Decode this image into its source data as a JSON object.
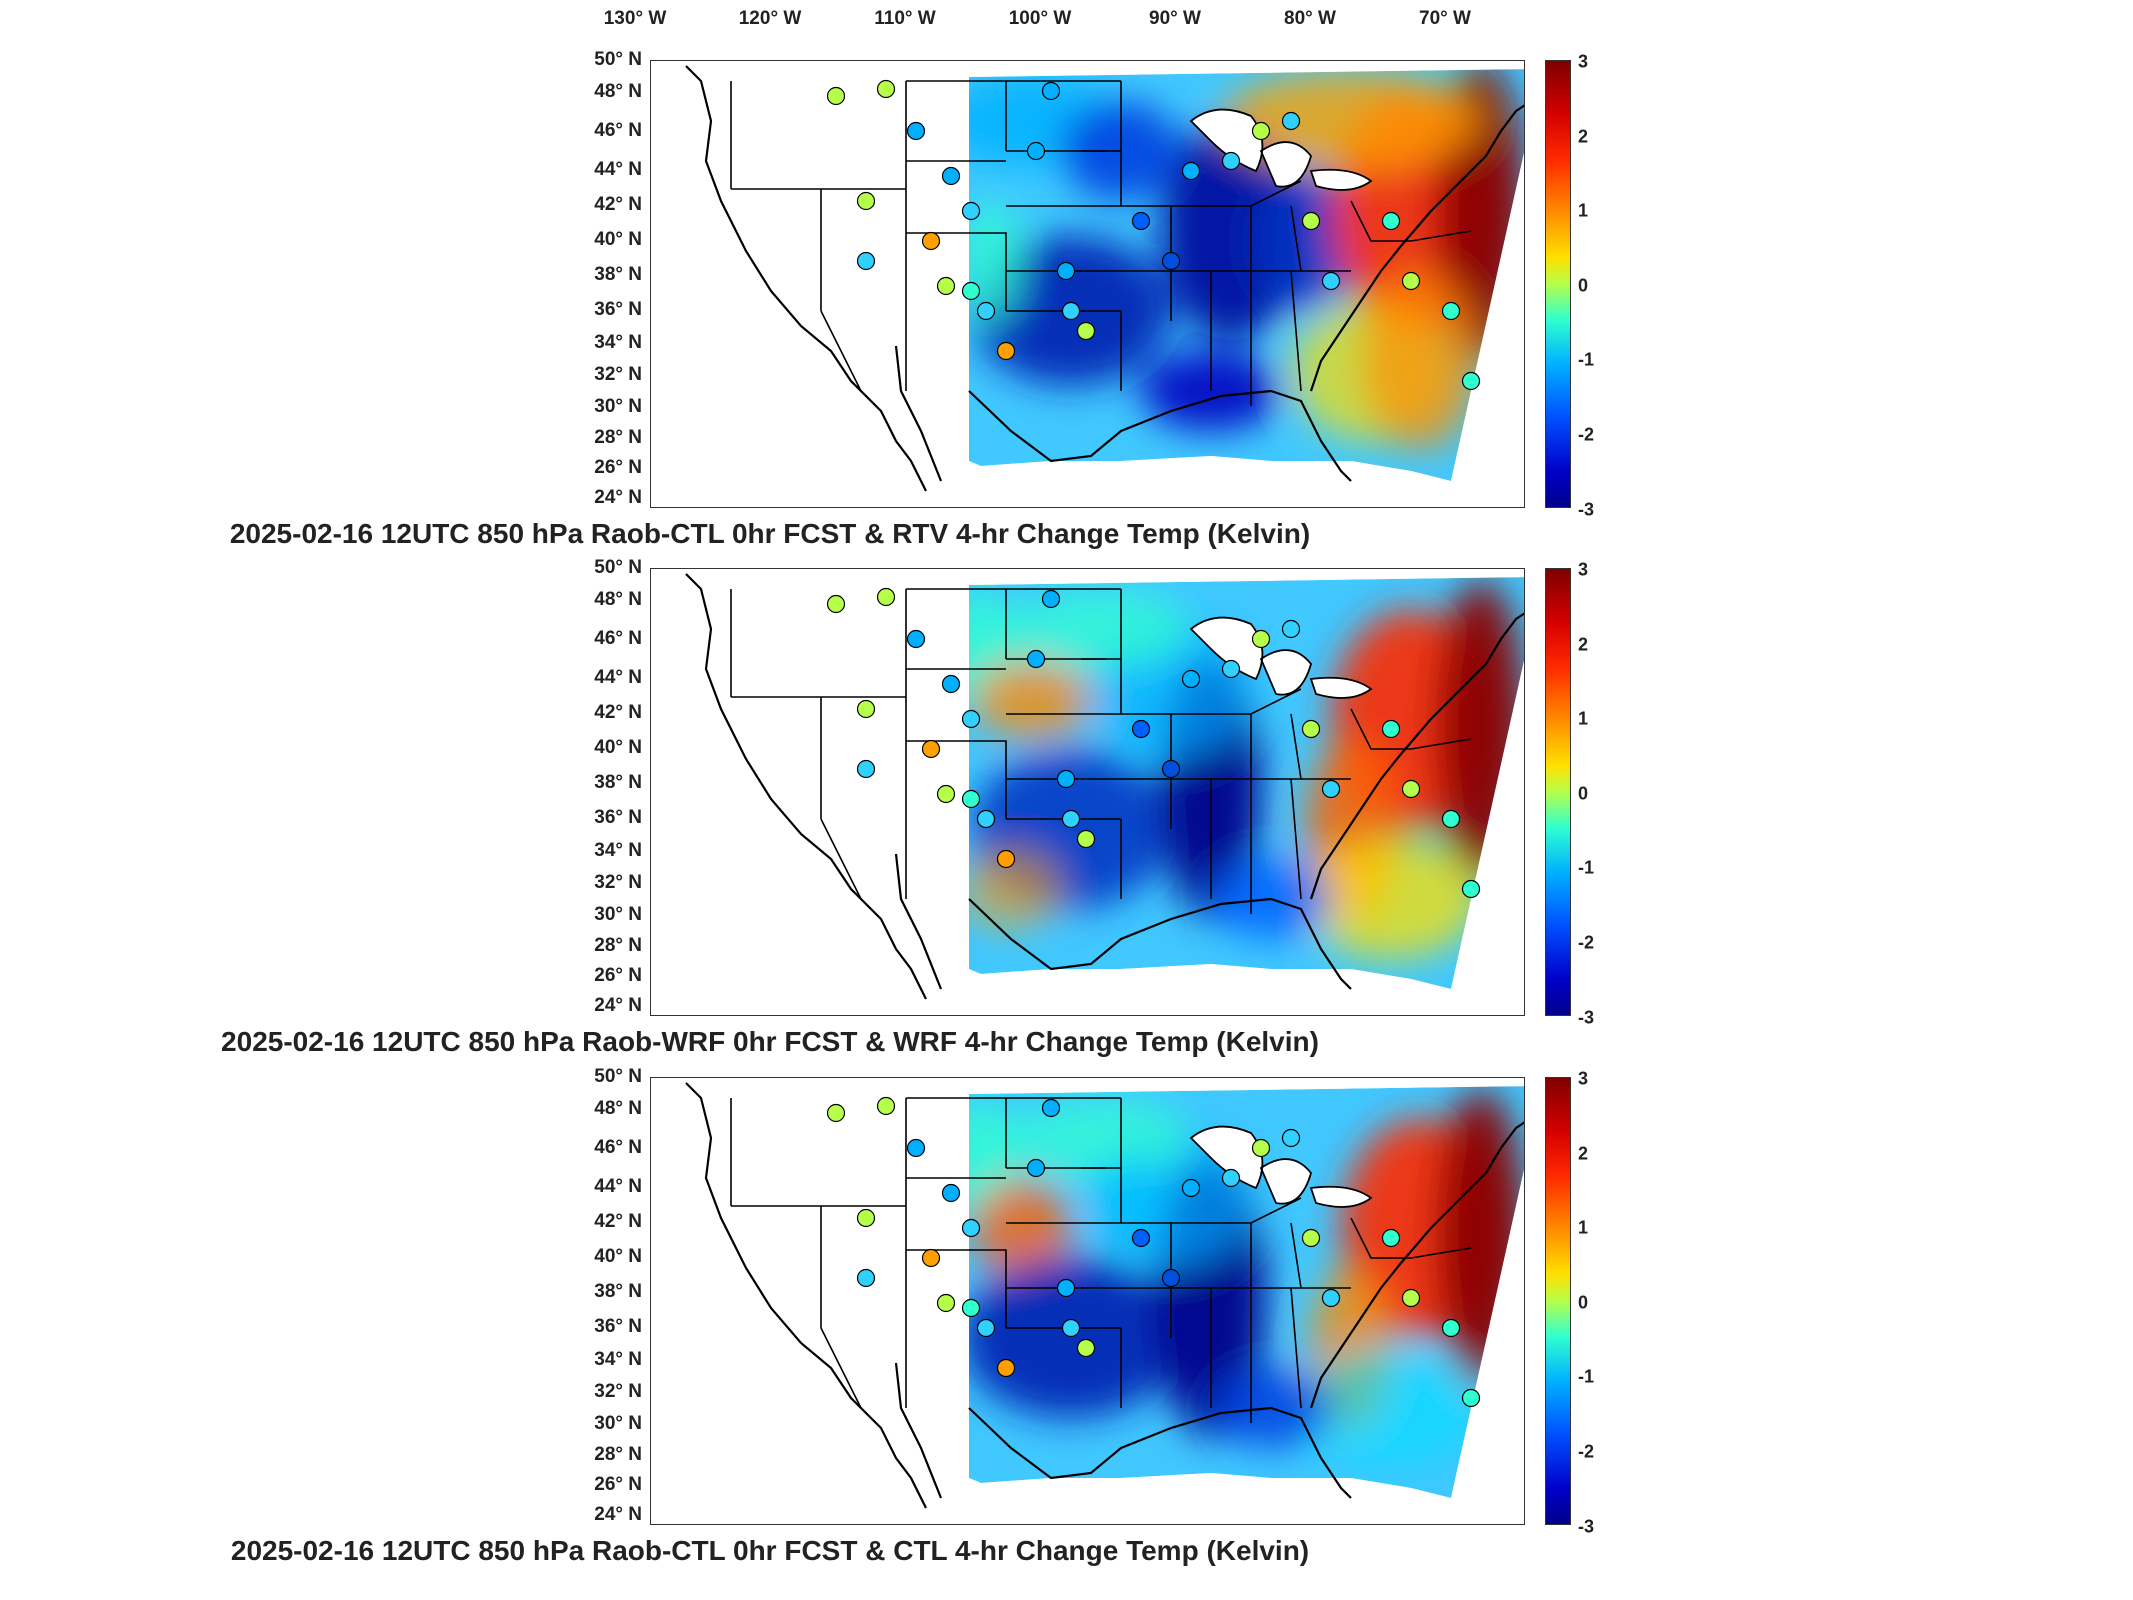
{
  "lon_labels": [
    "130° W",
    "120° W",
    "110° W",
    "100° W",
    "90° W",
    "80° W",
    "70° W"
  ],
  "lat_labels": [
    "50° N",
    "48° N",
    "46° N",
    "44° N",
    "42° N",
    "40° N",
    "38° N",
    "36° N",
    "34° N",
    "32° N",
    "30° N",
    "28° N",
    "26° N",
    "24° N"
  ],
  "colorbar_ticks": [
    "3",
    "2",
    "1",
    "0",
    "-1",
    "-2",
    "-3"
  ],
  "colorbar_colors": {
    "max": "#7f0000",
    "warm": "#ff2a00",
    "mid": "#ffe000",
    "zero": "#b5ff4a",
    "cool": "#00b0ff",
    "min": "#00008a"
  },
  "panels": [
    {
      "title": "2025-02-16 12UTC 850 hPa Raob-CTL 0hr FCST & RTV 4-hr Change Temp (Kelvin)"
    },
    {
      "title": "2025-02-16 12UTC 850 hPa Raob-WRF 0hr FCST & WRF 4-hr Change Temp (Kelvin)"
    },
    {
      "title": "2025-02-16 12UTC 850 hPa Raob-CTL 0hr FCST & CTL 4-hr Change Temp (Kelvin)"
    }
  ]
}
